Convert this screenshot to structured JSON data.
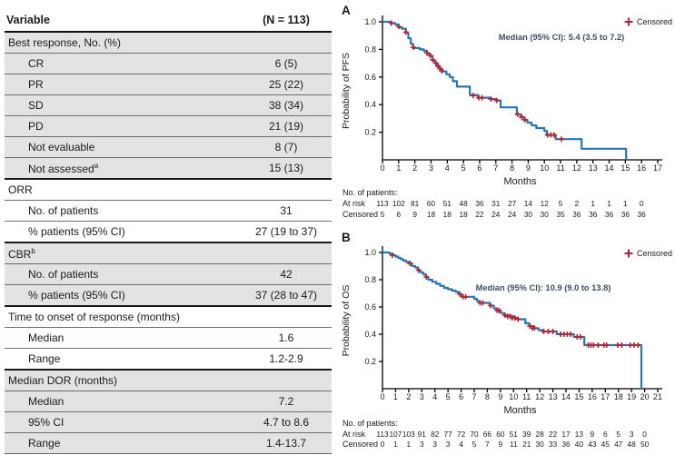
{
  "table": {
    "header": {
      "variable": "Variable",
      "n": "(N = 113)"
    },
    "rows": [
      {
        "label": "Best response, No. (%)",
        "value": "",
        "indent": false,
        "shaded": true,
        "section": true
      },
      {
        "label": "CR",
        "value": "6 (5)",
        "indent": true,
        "shaded": true,
        "section": false
      },
      {
        "label": "PR",
        "value": "25 (22)",
        "indent": true,
        "shaded": true,
        "section": false
      },
      {
        "label": "SD",
        "value": "38 (34)",
        "indent": true,
        "shaded": true,
        "section": false
      },
      {
        "label": "PD",
        "value": "21 (19)",
        "indent": true,
        "shaded": true,
        "section": false
      },
      {
        "label": "Not evaluable",
        "value": "8 (7)",
        "indent": true,
        "shaded": true,
        "section": false
      },
      {
        "label": "Not assessed",
        "sup": "a",
        "value": "15 (13)",
        "indent": true,
        "shaded": true,
        "section": false
      },
      {
        "label": "ORR",
        "value": "",
        "indent": false,
        "shaded": false,
        "section": true
      },
      {
        "label": "No. of patients",
        "value": "31",
        "indent": true,
        "shaded": false,
        "section": false
      },
      {
        "label": "% patients (95% CI)",
        "value": "27 (19 to 37)",
        "indent": true,
        "shaded": false,
        "section": false
      },
      {
        "label": "CBR",
        "sup": "b",
        "value": "",
        "indent": false,
        "shaded": true,
        "section": true
      },
      {
        "label": "No. of patients",
        "value": "42",
        "indent": true,
        "shaded": true,
        "section": false
      },
      {
        "label": "% patients (95% CI)",
        "value": "37 (28 to 47)",
        "indent": true,
        "shaded": true,
        "section": false
      },
      {
        "label": "Time to onset of response (months)",
        "value": "",
        "indent": false,
        "shaded": false,
        "section": true
      },
      {
        "label": "Median",
        "value": "1.6",
        "indent": true,
        "shaded": false,
        "section": false
      },
      {
        "label": "Range",
        "value": "1.2-2.9",
        "indent": true,
        "shaded": false,
        "section": false
      },
      {
        "label": "Median DOR (months)",
        "value": "",
        "indent": false,
        "shaded": true,
        "section": true
      },
      {
        "label": "Median",
        "value": "7.2",
        "indent": true,
        "shaded": true,
        "section": false
      },
      {
        "label": "95% CI",
        "value": "4.7 to 8.6",
        "indent": true,
        "shaded": true,
        "section": false
      },
      {
        "label": "Range",
        "value": "1.4-13.7",
        "indent": true,
        "shaded": true,
        "section": false
      }
    ]
  },
  "colors": {
    "curve": "#2577b5",
    "censor": "#b6252f",
    "annotation": "#3f4d63",
    "row_shade": "#e3e3e3",
    "axis": "#000000",
    "text": "#1a1a1a"
  },
  "chart_data": [
    {
      "type": "line",
      "panel": "A",
      "ylabel": "Probability of PFS",
      "xlabel": "Months",
      "xlim": [
        0,
        17
      ],
      "ylim": [
        0,
        1.0
      ],
      "yticks": [
        0.2,
        0.4,
        0.6,
        0.8,
        1.0
      ],
      "legend": "Censored",
      "annotation": "Median (95% CI): 5.4 (3.5 to 7.2)",
      "patients_label": "No. of patients:",
      "at_risk_label": "At risk",
      "censored_label": "Censored",
      "at_risk": [
        113,
        102,
        81,
        60,
        51,
        48,
        36,
        31,
        27,
        14,
        12,
        5,
        2,
        1,
        1,
        1,
        0
      ],
      "censored": [
        5,
        6,
        9,
        18,
        18,
        18,
        22,
        24,
        24,
        30,
        30,
        35,
        36,
        36,
        36,
        36,
        36
      ],
      "curve": [
        [
          0,
          1.0
        ],
        [
          0.55,
          0.99
        ],
        [
          0.8,
          0.98
        ],
        [
          1.0,
          0.96
        ],
        [
          1.2,
          0.95
        ],
        [
          1.45,
          0.92
        ],
        [
          1.6,
          0.88
        ],
        [
          1.75,
          0.84
        ],
        [
          1.9,
          0.81
        ],
        [
          2.3,
          0.8
        ],
        [
          2.55,
          0.79
        ],
        [
          2.75,
          0.77
        ],
        [
          2.95,
          0.75
        ],
        [
          3.1,
          0.72
        ],
        [
          3.25,
          0.7
        ],
        [
          3.4,
          0.68
        ],
        [
          3.55,
          0.66
        ],
        [
          3.7,
          0.64
        ],
        [
          3.95,
          0.62
        ],
        [
          4.15,
          0.6
        ],
        [
          4.35,
          0.57
        ],
        [
          4.6,
          0.53
        ],
        [
          5.4,
          0.47
        ],
        [
          5.9,
          0.45
        ],
        [
          6.7,
          0.44
        ],
        [
          7.05,
          0.43
        ],
        [
          7.3,
          0.38
        ],
        [
          8.3,
          0.33
        ],
        [
          8.55,
          0.31
        ],
        [
          8.75,
          0.29
        ],
        [
          8.95,
          0.27
        ],
        [
          9.2,
          0.25
        ],
        [
          9.5,
          0.23
        ],
        [
          10.0,
          0.21
        ],
        [
          10.15,
          0.18
        ],
        [
          10.7,
          0.15
        ],
        [
          12.3,
          0.08
        ],
        [
          15.05,
          0
        ]
      ],
      "censors": [
        [
          0.55,
          0.99
        ],
        [
          1.0,
          0.965
        ],
        [
          1.45,
          0.925
        ],
        [
          1.9,
          0.815
        ],
        [
          2.75,
          0.775
        ],
        [
          2.95,
          0.755
        ],
        [
          3.1,
          0.725
        ],
        [
          3.3,
          0.7
        ],
        [
          3.45,
          0.675
        ],
        [
          3.55,
          0.66
        ],
        [
          3.65,
          0.645
        ],
        [
          5.6,
          0.465
        ],
        [
          5.95,
          0.45
        ],
        [
          6.15,
          0.45
        ],
        [
          6.7,
          0.44
        ],
        [
          7.05,
          0.43
        ],
        [
          8.35,
          0.33
        ],
        [
          8.6,
          0.31
        ],
        [
          8.8,
          0.29
        ],
        [
          10.2,
          0.18
        ],
        [
          10.4,
          0.18
        ],
        [
          10.6,
          0.18
        ],
        [
          11.05,
          0.15
        ]
      ]
    },
    {
      "type": "line",
      "panel": "B",
      "ylabel": "Probability of OS",
      "xlabel": "Months",
      "xlim": [
        0,
        21
      ],
      "ylim": [
        0,
        1.0
      ],
      "yticks": [
        0.2,
        0.4,
        0.6,
        0.8,
        1.0
      ],
      "legend": "Censored",
      "annotation": "Median (95% CI): 10.9 (9.0 to 13.8)",
      "patients_label": "No. of patients:",
      "at_risk_label": "At risk",
      "censored_label": "Censored",
      "at_risk": [
        113,
        107,
        103,
        91,
        82,
        77,
        72,
        70,
        66,
        60,
        51,
        39,
        28,
        22,
        17,
        13,
        9,
        6,
        5,
        3,
        0
      ],
      "censored": [
        0,
        1,
        1,
        3,
        3,
        3,
        4,
        5,
        7,
        9,
        11,
        21,
        30,
        33,
        36,
        40,
        43,
        45,
        47,
        48,
        50
      ],
      "curve": [
        [
          0,
          1.0
        ],
        [
          0.55,
          0.99
        ],
        [
          0.8,
          0.98
        ],
        [
          1.0,
          0.97
        ],
        [
          1.2,
          0.96
        ],
        [
          1.4,
          0.95
        ],
        [
          1.6,
          0.94
        ],
        [
          1.8,
          0.93
        ],
        [
          2.0,
          0.92
        ],
        [
          2.25,
          0.9
        ],
        [
          2.5,
          0.89
        ],
        [
          2.7,
          0.87
        ],
        [
          2.9,
          0.855
        ],
        [
          3.1,
          0.84
        ],
        [
          3.3,
          0.82
        ],
        [
          3.5,
          0.8
        ],
        [
          3.8,
          0.785
        ],
        [
          4.1,
          0.77
        ],
        [
          4.4,
          0.755
        ],
        [
          4.7,
          0.74
        ],
        [
          5.0,
          0.73
        ],
        [
          5.3,
          0.72
        ],
        [
          5.6,
          0.71
        ],
        [
          5.85,
          0.695
        ],
        [
          6.05,
          0.675
        ],
        [
          7.0,
          0.66
        ],
        [
          7.2,
          0.645
        ],
        [
          7.4,
          0.63
        ],
        [
          8.2,
          0.61
        ],
        [
          8.5,
          0.59
        ],
        [
          8.7,
          0.575
        ],
        [
          9.0,
          0.555
        ],
        [
          9.3,
          0.54
        ],
        [
          9.7,
          0.53
        ],
        [
          10.0,
          0.52
        ],
        [
          10.3,
          0.51
        ],
        [
          10.9,
          0.48
        ],
        [
          11.2,
          0.46
        ],
        [
          11.5,
          0.445
        ],
        [
          11.9,
          0.43
        ],
        [
          12.2,
          0.42
        ],
        [
          13.3,
          0.4
        ],
        [
          14.6,
          0.38
        ],
        [
          15.4,
          0.32
        ],
        [
          19.75,
          0
        ]
      ],
      "censors": [
        [
          0.75,
          0.98
        ],
        [
          2.1,
          0.92
        ],
        [
          2.75,
          0.87
        ],
        [
          3.35,
          0.82
        ],
        [
          5.9,
          0.695
        ],
        [
          6.15,
          0.675
        ],
        [
          6.35,
          0.675
        ],
        [
          7.45,
          0.63
        ],
        [
          7.65,
          0.63
        ],
        [
          8.25,
          0.61
        ],
        [
          8.75,
          0.575
        ],
        [
          8.9,
          0.575
        ],
        [
          9.35,
          0.54
        ],
        [
          9.55,
          0.53
        ],
        [
          9.75,
          0.53
        ],
        [
          9.9,
          0.52
        ],
        [
          10.1,
          0.52
        ],
        [
          10.35,
          0.51
        ],
        [
          11.25,
          0.46
        ],
        [
          11.45,
          0.445
        ],
        [
          11.6,
          0.445
        ],
        [
          12.3,
          0.42
        ],
        [
          12.65,
          0.42
        ],
        [
          13.0,
          0.42
        ],
        [
          13.6,
          0.4
        ],
        [
          13.85,
          0.4
        ],
        [
          14.1,
          0.4
        ],
        [
          14.35,
          0.4
        ],
        [
          14.85,
          0.38
        ],
        [
          15.1,
          0.38
        ],
        [
          15.7,
          0.32
        ],
        [
          15.9,
          0.32
        ],
        [
          16.1,
          0.32
        ],
        [
          16.45,
          0.32
        ],
        [
          16.9,
          0.32
        ],
        [
          17.1,
          0.32
        ],
        [
          17.95,
          0.32
        ],
        [
          18.25,
          0.32
        ],
        [
          18.9,
          0.32
        ],
        [
          19.2,
          0.32
        ],
        [
          19.5,
          0.32
        ]
      ]
    }
  ]
}
